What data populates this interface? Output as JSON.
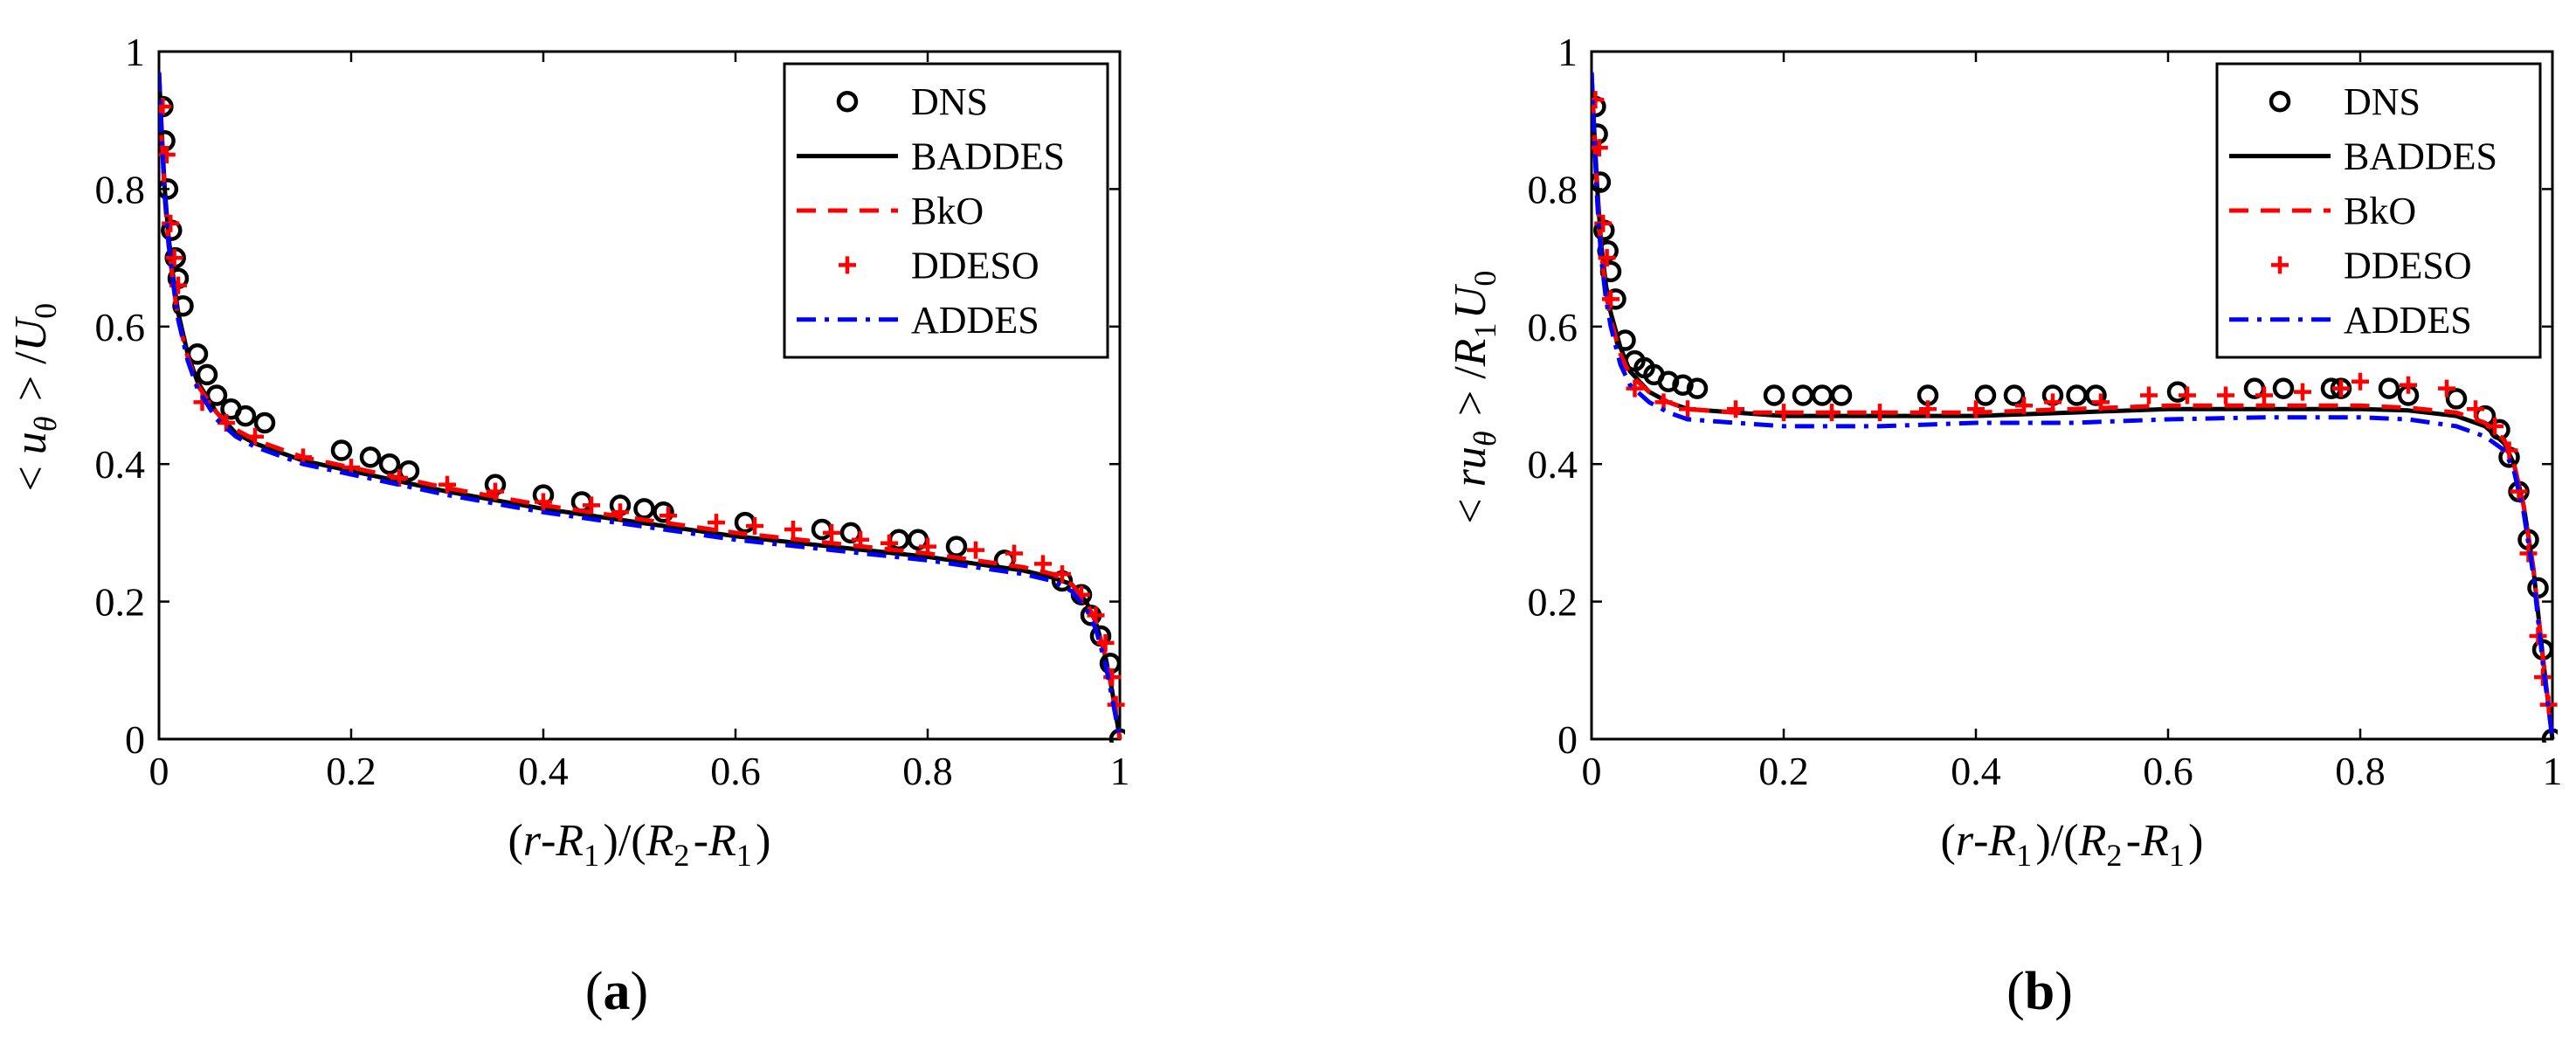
{
  "chart_data": [
    {
      "panel": "(a)",
      "panel_letter": "a",
      "type": "line",
      "xlabel": "(r-R1)/(R2-R1)",
      "ylabel": "< uθ > /U0",
      "xlim": [
        0,
        1
      ],
      "ylim": [
        0,
        1
      ],
      "xticks": [
        0,
        0.2,
        0.4,
        0.6,
        0.8,
        1
      ],
      "yticks": [
        0,
        0.2,
        0.4,
        0.6,
        0.8,
        1
      ],
      "xtick_labels": [
        "0",
        "0.2",
        "0.4",
        "0.6",
        "0.8",
        "1"
      ],
      "ytick_labels": [
        "0",
        "0.2",
        "0.4",
        "0.6",
        "0.8",
        "1"
      ],
      "legend_position": "top-right",
      "series": [
        {
          "name": "DNS",
          "style": "circle-markers",
          "color": "#000000",
          "x": [
            0.004,
            0.006,
            0.009,
            0.013,
            0.017,
            0.02,
            0.025,
            0.04,
            0.05,
            0.06,
            0.075,
            0.09,
            0.11,
            0.19,
            0.22,
            0.24,
            0.26,
            0.35,
            0.4,
            0.44,
            0.48,
            0.505,
            0.525,
            0.61,
            0.69,
            0.72,
            0.77,
            0.79,
            0.83,
            0.88,
            0.94,
            0.96,
            0.97,
            0.98,
            0.99,
            1.0
          ],
          "y": [
            0.92,
            0.87,
            0.8,
            0.74,
            0.7,
            0.67,
            0.63,
            0.56,
            0.53,
            0.5,
            0.48,
            0.47,
            0.46,
            0.42,
            0.41,
            0.4,
            0.39,
            0.37,
            0.355,
            0.345,
            0.34,
            0.335,
            0.33,
            0.315,
            0.305,
            0.3,
            0.29,
            0.29,
            0.28,
            0.26,
            0.23,
            0.21,
            0.18,
            0.15,
            0.11,
            0.0
          ]
        },
        {
          "name": "BADDES",
          "style": "solid",
          "color": "#000000",
          "x": [
            0.0,
            0.003,
            0.006,
            0.01,
            0.015,
            0.02,
            0.03,
            0.04,
            0.06,
            0.08,
            0.1,
            0.15,
            0.2,
            0.3,
            0.4,
            0.5,
            0.6,
            0.7,
            0.8,
            0.85,
            0.9,
            0.93,
            0.95,
            0.965,
            0.975,
            0.985,
            0.992,
            1.0
          ],
          "y": [
            0.97,
            0.88,
            0.8,
            0.73,
            0.67,
            0.62,
            0.56,
            0.52,
            0.475,
            0.445,
            0.43,
            0.405,
            0.39,
            0.36,
            0.335,
            0.315,
            0.295,
            0.28,
            0.265,
            0.255,
            0.245,
            0.235,
            0.225,
            0.2,
            0.17,
            0.12,
            0.07,
            0.0
          ]
        },
        {
          "name": "BkO",
          "style": "dashed",
          "color": "#ff0000",
          "x": [
            0.0,
            0.003,
            0.006,
            0.01,
            0.015,
            0.02,
            0.03,
            0.04,
            0.06,
            0.08,
            0.1,
            0.15,
            0.2,
            0.3,
            0.4,
            0.5,
            0.6,
            0.7,
            0.8,
            0.85,
            0.9,
            0.93,
            0.95,
            0.965,
            0.975,
            0.985,
            0.992,
            1.0
          ],
          "y": [
            0.97,
            0.87,
            0.79,
            0.72,
            0.66,
            0.61,
            0.555,
            0.515,
            0.475,
            0.45,
            0.435,
            0.41,
            0.395,
            0.365,
            0.34,
            0.32,
            0.3,
            0.285,
            0.27,
            0.26,
            0.25,
            0.24,
            0.225,
            0.2,
            0.17,
            0.12,
            0.07,
            0.0
          ]
        },
        {
          "name": "DDESO",
          "style": "plus-markers",
          "color": "#ff0000",
          "x": [
            0.004,
            0.008,
            0.012,
            0.016,
            0.02,
            0.045,
            0.07,
            0.1,
            0.15,
            0.2,
            0.25,
            0.3,
            0.35,
            0.4,
            0.45,
            0.48,
            0.53,
            0.58,
            0.62,
            0.66,
            0.7,
            0.73,
            0.76,
            0.8,
            0.85,
            0.89,
            0.92,
            0.94,
            0.96,
            0.975,
            0.985,
            0.992,
            0.996
          ],
          "y": [
            0.92,
            0.85,
            0.75,
            0.7,
            0.66,
            0.49,
            0.46,
            0.44,
            0.41,
            0.395,
            0.38,
            0.37,
            0.36,
            0.345,
            0.34,
            0.33,
            0.325,
            0.315,
            0.31,
            0.305,
            0.3,
            0.29,
            0.285,
            0.28,
            0.275,
            0.27,
            0.255,
            0.24,
            0.21,
            0.18,
            0.14,
            0.09,
            0.05
          ]
        },
        {
          "name": "ADDES",
          "style": "dash-dot",
          "color": "#0000ff",
          "x": [
            0.0,
            0.003,
            0.006,
            0.01,
            0.015,
            0.02,
            0.03,
            0.04,
            0.06,
            0.08,
            0.1,
            0.15,
            0.2,
            0.3,
            0.4,
            0.5,
            0.6,
            0.7,
            0.8,
            0.85,
            0.9,
            0.93,
            0.95,
            0.965,
            0.975,
            0.985,
            0.992,
            1.0
          ],
          "y": [
            0.97,
            0.87,
            0.79,
            0.72,
            0.66,
            0.61,
            0.55,
            0.51,
            0.465,
            0.44,
            0.425,
            0.4,
            0.385,
            0.355,
            0.33,
            0.31,
            0.29,
            0.275,
            0.26,
            0.25,
            0.24,
            0.23,
            0.215,
            0.19,
            0.16,
            0.11,
            0.06,
            0.0
          ]
        }
      ]
    },
    {
      "panel": "(b)",
      "panel_letter": "b",
      "type": "line",
      "xlabel": "(r-R1)/(R2-R1)",
      "ylabel": "< ruθ > /R1U0",
      "xlim": [
        0,
        1
      ],
      "ylim": [
        0,
        1
      ],
      "xticks": [
        0,
        0.2,
        0.4,
        0.6,
        0.8,
        1
      ],
      "yticks": [
        0,
        0.2,
        0.4,
        0.6,
        0.8,
        1
      ],
      "xtick_labels": [
        "0",
        "0.2",
        "0.4",
        "0.6",
        "0.8",
        "1"
      ],
      "ytick_labels": [
        "0",
        "0.2",
        "0.4",
        "0.6",
        "0.8",
        "1"
      ],
      "legend_position": "top-right",
      "series": [
        {
          "name": "DNS",
          "style": "circle-markers",
          "color": "#000000",
          "x": [
            0.004,
            0.006,
            0.009,
            0.013,
            0.017,
            0.02,
            0.025,
            0.035,
            0.045,
            0.055,
            0.065,
            0.08,
            0.095,
            0.11,
            0.19,
            0.22,
            0.24,
            0.26,
            0.35,
            0.41,
            0.44,
            0.48,
            0.505,
            0.525,
            0.61,
            0.69,
            0.72,
            0.77,
            0.78,
            0.83,
            0.85,
            0.9,
            0.93,
            0.945,
            0.955,
            0.965,
            0.975,
            0.985,
            0.99,
            1.0
          ],
          "y": [
            0.92,
            0.88,
            0.81,
            0.74,
            0.71,
            0.68,
            0.64,
            0.58,
            0.55,
            0.54,
            0.53,
            0.52,
            0.515,
            0.51,
            0.5,
            0.5,
            0.5,
            0.5,
            0.5,
            0.5,
            0.5,
            0.5,
            0.5,
            0.5,
            0.505,
            0.51,
            0.51,
            0.51,
            0.51,
            0.51,
            0.5,
            0.495,
            0.47,
            0.45,
            0.41,
            0.36,
            0.29,
            0.22,
            0.13,
            0.0
          ]
        },
        {
          "name": "BADDES",
          "style": "solid",
          "color": "#000000",
          "x": [
            0.0,
            0.003,
            0.006,
            0.01,
            0.015,
            0.02,
            0.03,
            0.04,
            0.06,
            0.08,
            0.1,
            0.15,
            0.2,
            0.3,
            0.4,
            0.5,
            0.6,
            0.7,
            0.8,
            0.85,
            0.9,
            0.93,
            0.95,
            0.96,
            0.97,
            0.98,
            0.99,
            1.0
          ],
          "y": [
            0.97,
            0.88,
            0.8,
            0.72,
            0.66,
            0.62,
            0.57,
            0.535,
            0.505,
            0.49,
            0.48,
            0.475,
            0.47,
            0.47,
            0.47,
            0.475,
            0.48,
            0.48,
            0.48,
            0.478,
            0.47,
            0.455,
            0.43,
            0.4,
            0.34,
            0.25,
            0.12,
            0.0
          ]
        },
        {
          "name": "BkO",
          "style": "dashed",
          "color": "#ff0000",
          "x": [
            0.0,
            0.003,
            0.006,
            0.01,
            0.015,
            0.02,
            0.03,
            0.04,
            0.06,
            0.08,
            0.1,
            0.15,
            0.2,
            0.3,
            0.4,
            0.5,
            0.6,
            0.7,
            0.8,
            0.85,
            0.9,
            0.93,
            0.95,
            0.96,
            0.97,
            0.98,
            0.99,
            1.0
          ],
          "y": [
            0.97,
            0.87,
            0.79,
            0.71,
            0.65,
            0.61,
            0.56,
            0.53,
            0.505,
            0.49,
            0.48,
            0.475,
            0.475,
            0.475,
            0.475,
            0.48,
            0.485,
            0.485,
            0.485,
            0.482,
            0.475,
            0.46,
            0.435,
            0.4,
            0.34,
            0.25,
            0.12,
            0.0
          ]
        },
        {
          "name": "DDESO",
          "style": "plus-markers",
          "color": "#ff0000",
          "x": [
            0.004,
            0.008,
            0.012,
            0.016,
            0.02,
            0.045,
            0.075,
            0.1,
            0.15,
            0.2,
            0.25,
            0.3,
            0.35,
            0.4,
            0.45,
            0.48,
            0.53,
            0.58,
            0.62,
            0.66,
            0.7,
            0.74,
            0.78,
            0.8,
            0.85,
            0.89,
            0.92,
            0.94,
            0.955,
            0.965,
            0.975,
            0.985,
            0.99,
            0.996
          ],
          "y": [
            0.93,
            0.86,
            0.75,
            0.7,
            0.64,
            0.51,
            0.49,
            0.48,
            0.48,
            0.475,
            0.475,
            0.475,
            0.48,
            0.48,
            0.485,
            0.49,
            0.49,
            0.5,
            0.5,
            0.5,
            0.5,
            0.505,
            0.51,
            0.52,
            0.515,
            0.51,
            0.48,
            0.455,
            0.42,
            0.36,
            0.27,
            0.15,
            0.09,
            0.05
          ]
        },
        {
          "name": "ADDES",
          "style": "dash-dot",
          "color": "#0000ff",
          "x": [
            0.0,
            0.003,
            0.006,
            0.01,
            0.015,
            0.02,
            0.03,
            0.04,
            0.06,
            0.08,
            0.1,
            0.15,
            0.2,
            0.3,
            0.4,
            0.5,
            0.6,
            0.7,
            0.8,
            0.85,
            0.9,
            0.93,
            0.95,
            0.96,
            0.97,
            0.98,
            0.99,
            1.0
          ],
          "y": [
            0.97,
            0.87,
            0.78,
            0.7,
            0.64,
            0.6,
            0.545,
            0.515,
            0.49,
            0.475,
            0.465,
            0.46,
            0.455,
            0.455,
            0.46,
            0.46,
            0.465,
            0.468,
            0.468,
            0.465,
            0.455,
            0.44,
            0.42,
            0.39,
            0.33,
            0.24,
            0.11,
            0.0
          ]
        }
      ]
    }
  ]
}
